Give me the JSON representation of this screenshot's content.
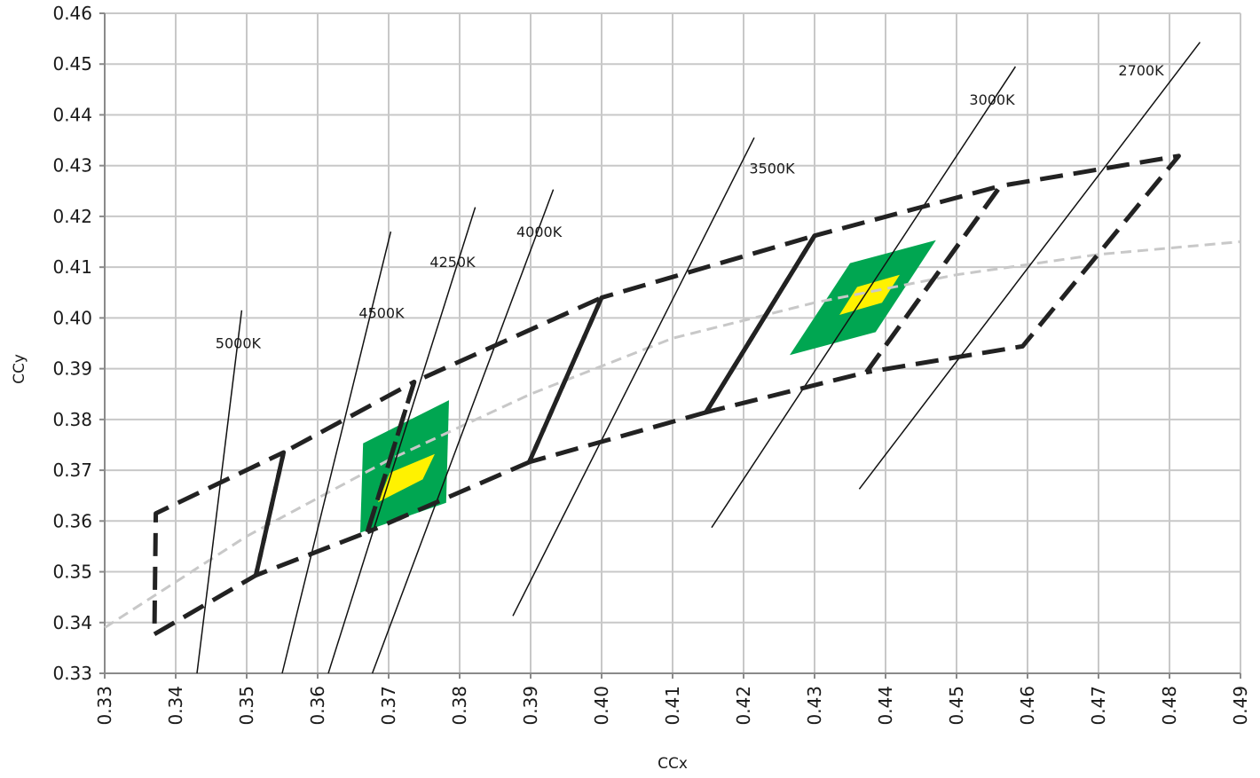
{
  "chart_data": {
    "type": "scatter",
    "xlabel": "CCx",
    "ylabel": "CCy",
    "xlim": [
      0.33,
      0.49
    ],
    "ylim": [
      0.33,
      0.46
    ],
    "x_ticks": [
      "0.33",
      "0.34",
      "0.35",
      "0.36",
      "0.37",
      "0.38",
      "0.39",
      "0.40",
      "0.41",
      "0.42",
      "0.43",
      "0.44",
      "0.45",
      "0.46",
      "0.47",
      "0.48",
      "0.49"
    ],
    "y_ticks": [
      "0.33",
      "0.34",
      "0.35",
      "0.36",
      "0.37",
      "0.38",
      "0.39",
      "0.40",
      "0.41",
      "0.42",
      "0.43",
      "0.44",
      "0.45",
      "0.46"
    ],
    "grid": true,
    "colors": {
      "grid": "#c8c8c8",
      "bins": "#222222",
      "cct_lines": "#111111",
      "locus": "#c8c8c8",
      "green_zone": "#00a651",
      "yellow_zone": "#fff200"
    },
    "cct_lines": [
      {
        "label": "5000K",
        "points": [
          [
            0.343,
            0.33
          ],
          [
            0.3493,
            0.4015
          ]
        ],
        "label_at": [
          0.3488,
          0.394
        ]
      },
      {
        "label": "4500K",
        "points": [
          [
            0.355,
            0.33
          ],
          [
            0.3703,
            0.417
          ]
        ],
        "label_at": [
          0.369,
          0.4
        ]
      },
      {
        "label": "4250K",
        "points": [
          [
            0.3615,
            0.33
          ],
          [
            0.3822,
            0.4218
          ]
        ],
        "label_at": [
          0.379,
          0.41
        ]
      },
      {
        "label": "4000K",
        "points": [
          [
            0.3677,
            0.33
          ],
          [
            0.3932,
            0.4253
          ]
        ],
        "label_at": [
          0.3912,
          0.416
        ]
      },
      {
        "label": "3500K",
        "points": [
          [
            0.3875,
            0.3413
          ],
          [
            0.4215,
            0.4355
          ]
        ],
        "label_at": [
          0.424,
          0.4285
        ]
      },
      {
        "label": "3000K",
        "points": [
          [
            0.4155,
            0.3587
          ],
          [
            0.4583,
            0.4495
          ]
        ],
        "label_at": [
          0.455,
          0.442
        ]
      },
      {
        "label": "2700K",
        "points": [
          [
            0.4363,
            0.3663
          ],
          [
            0.4843,
            0.4543
          ]
        ],
        "label_at": [
          0.476,
          0.4478
        ]
      }
    ],
    "planckian_locus": [
      [
        0.33,
        0.339
      ],
      [
        0.35,
        0.357
      ],
      [
        0.37,
        0.372
      ],
      [
        0.39,
        0.385
      ],
      [
        0.41,
        0.396
      ],
      [
        0.43,
        0.403
      ],
      [
        0.45,
        0.4085
      ],
      [
        0.47,
        0.4125
      ],
      [
        0.49,
        0.415
      ]
    ],
    "bins": [
      {
        "points": [
          [
            0.337,
            0.3377
          ],
          [
            0.3513,
            0.3493
          ],
          [
            0.3552,
            0.3735
          ],
          [
            0.3372,
            0.3615
          ],
          [
            0.337,
            0.3377
          ]
        ]
      },
      {
        "points": [
          [
            0.3513,
            0.3493
          ],
          [
            0.3552,
            0.3735
          ],
          [
            0.3736,
            0.3874
          ],
          [
            0.367,
            0.3578
          ],
          [
            0.3513,
            0.3493
          ]
        ]
      },
      {
        "points": [
          [
            0.367,
            0.3578
          ],
          [
            0.3736,
            0.3874
          ],
          [
            0.4,
            0.404
          ],
          [
            0.3898,
            0.3716
          ],
          [
            0.367,
            0.3578
          ]
        ]
      },
      {
        "points": [
          [
            0.3898,
            0.3716
          ],
          [
            0.4,
            0.404
          ],
          [
            0.43,
            0.4162
          ],
          [
            0.4147,
            0.3814
          ],
          [
            0.3898,
            0.3716
          ]
        ]
      },
      {
        "points": [
          [
            0.4147,
            0.3814
          ],
          [
            0.43,
            0.4162
          ],
          [
            0.4562,
            0.426
          ],
          [
            0.4373,
            0.3893
          ],
          [
            0.4147,
            0.3814
          ]
        ]
      },
      {
        "points": [
          [
            0.4373,
            0.3893
          ],
          [
            0.4562,
            0.426
          ],
          [
            0.4813,
            0.4319
          ],
          [
            0.4593,
            0.3944
          ],
          [
            0.4373,
            0.3893
          ]
        ]
      }
    ],
    "bins_outer": [
      {
        "points": [
          [
            0.3372,
            0.3615
          ],
          [
            0.3552,
            0.3735
          ],
          [
            0.3736,
            0.3874
          ],
          [
            0.4,
            0.404
          ],
          [
            0.43,
            0.4162
          ],
          [
            0.4562,
            0.426
          ],
          [
            0.4813,
            0.4319
          ]
        ]
      },
      {
        "points": [
          [
            0.337,
            0.3377
          ],
          [
            0.3513,
            0.3493
          ],
          [
            0.367,
            0.3578
          ],
          [
            0.3898,
            0.3716
          ],
          [
            0.4147,
            0.3814
          ],
          [
            0.4373,
            0.3893
          ],
          [
            0.4593,
            0.3944
          ]
        ]
      }
    ],
    "solid_segment": [
      [
        0.4147,
        0.3814
      ],
      [
        0.43,
        0.4162
      ]
    ],
    "green_zones": [
      [
        [
          0.366,
          0.3577
        ],
        [
          0.3781,
          0.3636
        ],
        [
          0.3785,
          0.3838
        ],
        [
          0.3664,
          0.3753
        ]
      ],
      [
        [
          0.4265,
          0.3927
        ],
        [
          0.4386,
          0.3972
        ],
        [
          0.4471,
          0.4153
        ],
        [
          0.435,
          0.4108
        ]
      ]
    ],
    "yellow_zones": [
      [
        [
          0.3685,
          0.3637
        ],
        [
          0.3748,
          0.3682
        ],
        [
          0.3765,
          0.3732
        ],
        [
          0.3702,
          0.3695
        ]
      ],
      [
        [
          0.4335,
          0.4006
        ],
        [
          0.4395,
          0.403
        ],
        [
          0.442,
          0.4085
        ],
        [
          0.436,
          0.4061
        ]
      ]
    ]
  }
}
